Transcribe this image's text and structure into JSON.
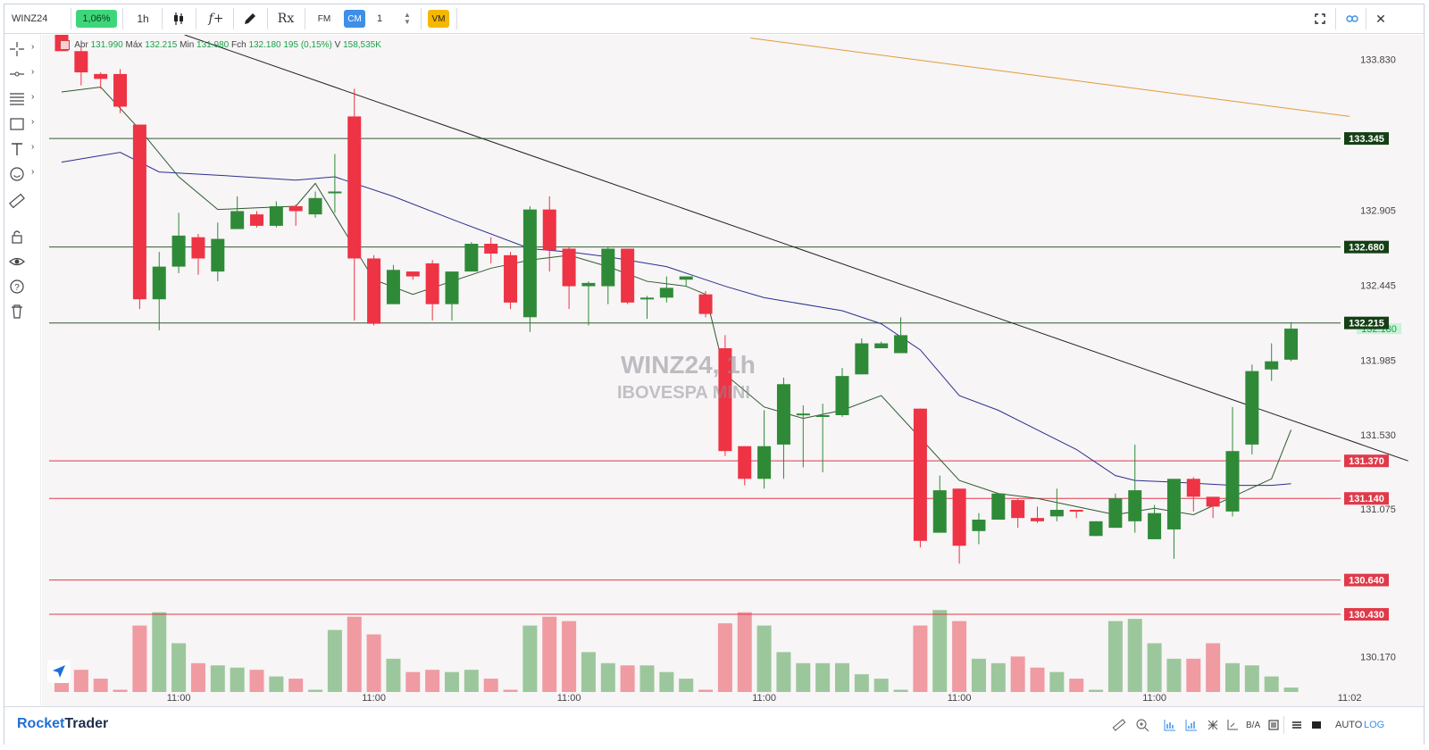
{
  "toolbar": {
    "symbol": "WINZ24",
    "change": "1,06%",
    "timeframe": "1h",
    "fx_label": "f+",
    "rx_label": "Rx",
    "fm_label": "FM",
    "cm_label": "CM",
    "quantity": "1",
    "vm_label": "VM",
    "icons": [
      "crosshair-icon",
      "line-icon",
      "fib-icon",
      "rectangle-icon",
      "text-icon",
      "emoji-icon",
      "ruler-icon",
      "lock-icon",
      "eye-icon",
      "help-icon",
      "trash-icon"
    ]
  },
  "ohlc": {
    "abr_label": "Abr",
    "abr": "131.990",
    "max_label": "Máx",
    "max": "132.215",
    "min_label": "Min",
    "min": "131.980",
    "fch_label": "Fch",
    "fch": "132.180",
    "chg": "195 (0,15%)",
    "vol_label": "V",
    "vol": "158,535K"
  },
  "watermark": {
    "symbol": "WINZ24, 1h",
    "name": "IBOVESPA MINI"
  },
  "footer": {
    "brand_1": "Rocket",
    "brand_2": "Trader",
    "auto": "AUTO",
    "log": "LOG"
  },
  "chart_data": {
    "type": "candlestick",
    "ylim": [
      130.02,
      133.98
    ],
    "y_ticks": [
      133.83,
      132.905,
      132.445,
      131.985,
      131.53,
      131.075,
      130.17
    ],
    "x_tick_labels": [
      {
        "index": 6,
        "label": "11:00"
      },
      {
        "index": 16,
        "label": "11:00"
      },
      {
        "index": 26,
        "label": "11:00"
      },
      {
        "index": 36,
        "label": "11:00"
      },
      {
        "index": 46,
        "label": "11:00"
      },
      {
        "index": 56,
        "label": "11:00"
      },
      {
        "index": 66,
        "label": "11:02"
      }
    ],
    "candles": [
      [
        133.98,
        133.88,
        134.02,
        133.88
      ],
      [
        133.88,
        133.75,
        133.91,
        133.67
      ],
      [
        133.74,
        133.71,
        133.75,
        133.65
      ],
      [
        133.74,
        133.54,
        133.77,
        133.5
      ],
      [
        133.43,
        132.36,
        133.43,
        132.3
      ],
      [
        132.36,
        132.56,
        132.65,
        132.17
      ],
      [
        132.56,
        132.75,
        132.89,
        132.52
      ],
      [
        132.74,
        132.61,
        132.76,
        132.51
      ],
      [
        132.53,
        132.73,
        132.83,
        132.47
      ],
      [
        132.79,
        132.9,
        132.99,
        132.82
      ],
      [
        132.88,
        132.81,
        132.9,
        132.8
      ],
      [
        132.81,
        132.93,
        132.96,
        132.8
      ],
      [
        132.93,
        132.9,
        132.94,
        132.81
      ],
      [
        132.88,
        132.98,
        133.02,
        132.86
      ],
      [
        133.01,
        133.02,
        133.25,
        132.89
      ],
      [
        133.48,
        132.61,
        133.65,
        132.23
      ],
      [
        132.61,
        132.21,
        132.63,
        132.2
      ],
      [
        132.33,
        132.54,
        132.57,
        132.33
      ],
      [
        132.53,
        132.5,
        132.52,
        132.48
      ],
      [
        132.58,
        132.33,
        132.6,
        132.23
      ],
      [
        132.33,
        132.53,
        132.53,
        132.23
      ],
      [
        132.53,
        132.7,
        132.71,
        132.53
      ],
      [
        132.7,
        132.64,
        132.74,
        132.58
      ],
      [
        132.63,
        132.34,
        132.65,
        132.3
      ],
      [
        132.25,
        132.91,
        132.93,
        132.16
      ],
      [
        132.91,
        132.66,
        132.99,
        132.53
      ],
      [
        132.67,
        132.44,
        132.68,
        132.3
      ],
      [
        132.44,
        132.46,
        132.47,
        132.2
      ],
      [
        132.44,
        132.67,
        132.68,
        132.33
      ],
      [
        132.67,
        132.34,
        132.64,
        132.33
      ],
      [
        132.36,
        132.37,
        132.38,
        132.24
      ],
      [
        132.37,
        132.43,
        132.5,
        132.34
      ],
      [
        132.48,
        132.5,
        132.45,
        132.44
      ],
      [
        132.39,
        132.27,
        132.41,
        132.25
      ],
      [
        132.06,
        131.43,
        132.14,
        131.4
      ],
      [
        131.46,
        131.26,
        131.45,
        131.22
      ],
      [
        131.26,
        131.46,
        131.68,
        131.2
      ],
      [
        131.47,
        131.84,
        131.88,
        131.26
      ],
      [
        131.65,
        131.66,
        131.71,
        131.33
      ],
      [
        131.64,
        131.65,
        131.72,
        131.3
      ],
      [
        131.65,
        131.89,
        131.94,
        131.64
      ],
      [
        131.9,
        132.09,
        132.12,
        131.91
      ],
      [
        132.06,
        132.09,
        132.1,
        132.06
      ],
      [
        132.03,
        132.14,
        132.25,
        132.06
      ],
      [
        131.69,
        130.88,
        131.65,
        130.84
      ],
      [
        130.93,
        131.19,
        131.28,
        130.93
      ],
      [
        131.2,
        130.85,
        131.2,
        130.74
      ],
      [
        130.94,
        131.01,
        131.05,
        130.86
      ],
      [
        131.01,
        131.17,
        131.16,
        131.12
      ],
      [
        131.13,
        131.02,
        131.14,
        130.96
      ],
      [
        131.02,
        131.0,
        131.09,
        130.99
      ],
      [
        131.03,
        131.07,
        131.2,
        131.0
      ],
      [
        131.07,
        131.06,
        131.06,
        131.02
      ],
      [
        130.91,
        131.0,
        131.0,
        130.99
      ],
      [
        130.96,
        131.14,
        131.17,
        131.03
      ],
      [
        131.0,
        131.19,
        131.47,
        130.93
      ],
      [
        130.89,
        131.05,
        131.1,
        130.94
      ],
      [
        130.95,
        131.26,
        131.26,
        130.77
      ],
      [
        131.26,
        131.15,
        131.27,
        131.06
      ],
      [
        131.15,
        131.09,
        131.08,
        131.02
      ],
      [
        131.06,
        131.43,
        131.7,
        131.03
      ],
      [
        131.47,
        131.92,
        131.96,
        131.41
      ],
      [
        131.93,
        131.98,
        132.09,
        131.86
      ],
      [
        131.99,
        132.18,
        132.22,
        131.98
      ]
    ],
    "volume": [
      12,
      10,
      6,
      1,
      30,
      36,
      22,
      13,
      12,
      11,
      10,
      7,
      6,
      1,
      28,
      34,
      26,
      15,
      9,
      10,
      9,
      10,
      6,
      1,
      30,
      34,
      32,
      18,
      13,
      12,
      12,
      9,
      6,
      1,
      31,
      36,
      30,
      18,
      13,
      13,
      13,
      8,
      6,
      1,
      30,
      37,
      32,
      15,
      13,
      16,
      11,
      9,
      6,
      1,
      32,
      33,
      22,
      15,
      15,
      22,
      13,
      12,
      7,
      2
    ],
    "horizontal_levels": [
      {
        "price": 133.345,
        "label": "133.345",
        "color": "#2f5c2f"
      },
      {
        "price": 132.68,
        "label": "132.680",
        "color": "#2f5c2f"
      },
      {
        "price": 132.215,
        "label": "132.215",
        "color": "#2f5c2f"
      },
      {
        "price": 131.37,
        "label": "131.370",
        "color": "#e03a4a"
      },
      {
        "price": 131.14,
        "label": "131.140",
        "color": "#e03a4a"
      },
      {
        "price": 130.64,
        "label": "130.640",
        "color": "#e03a4a"
      },
      {
        "price": 130.43,
        "label": "130.430",
        "color": "#e03a4a"
      }
    ],
    "current_price": "132.180",
    "trendlines": [
      {
        "from": [
          6.3,
          133.98
        ],
        "to": [
          69,
          131.37
        ],
        "color": "#222222"
      },
      {
        "from": [
          35.3,
          133.96
        ],
        "to": [
          66,
          133.48
        ],
        "color": "#e39a3a"
      }
    ],
    "ma_fast": [
      [
        0,
        133.63
      ],
      [
        2,
        133.66
      ],
      [
        4,
        133.4
      ],
      [
        6,
        133.11
      ],
      [
        8,
        132.91
      ],
      [
        10,
        132.92
      ],
      [
        12,
        132.93
      ],
      [
        13,
        133.07
      ],
      [
        16,
        132.48
      ],
      [
        18,
        132.39
      ],
      [
        20,
        132.47
      ],
      [
        22,
        132.55
      ],
      [
        24,
        132.6
      ],
      [
        26,
        132.63
      ],
      [
        28,
        132.56
      ],
      [
        30,
        132.47
      ],
      [
        32,
        132.44
      ],
      [
        33,
        132.39
      ],
      [
        34,
        131.9
      ],
      [
        36,
        131.7
      ],
      [
        38,
        131.63
      ],
      [
        40,
        131.68
      ],
      [
        42,
        131.77
      ],
      [
        44,
        131.51
      ],
      [
        46,
        131.25
      ],
      [
        48,
        131.17
      ],
      [
        50,
        131.14
      ],
      [
        52,
        131.09
      ],
      [
        54,
        131.04
      ],
      [
        56,
        131.08
      ],
      [
        58,
        131.04
      ],
      [
        60,
        131.15
      ],
      [
        62,
        131.26
      ],
      [
        63,
        131.56
      ]
    ],
    "ma_slow": [
      [
        0,
        133.2
      ],
      [
        2,
        133.24
      ],
      [
        3,
        133.26
      ],
      [
        5,
        133.14
      ],
      [
        8,
        133.12
      ],
      [
        12,
        133.09
      ],
      [
        14,
        133.11
      ],
      [
        17,
        132.99
      ],
      [
        20,
        132.85
      ],
      [
        24,
        132.67
      ],
      [
        26,
        132.65
      ],
      [
        28,
        132.62
      ],
      [
        31,
        132.56
      ],
      [
        34,
        132.44
      ],
      [
        36,
        132.37
      ],
      [
        40,
        132.29
      ],
      [
        42,
        132.21
      ],
      [
        44,
        132.05
      ],
      [
        46,
        131.77
      ],
      [
        48,
        131.68
      ],
      [
        52,
        131.44
      ],
      [
        54,
        131.28
      ],
      [
        55,
        131.25
      ],
      [
        57,
        131.24
      ],
      [
        60,
        131.22
      ],
      [
        62,
        131.22
      ],
      [
        63,
        131.23
      ]
    ]
  }
}
